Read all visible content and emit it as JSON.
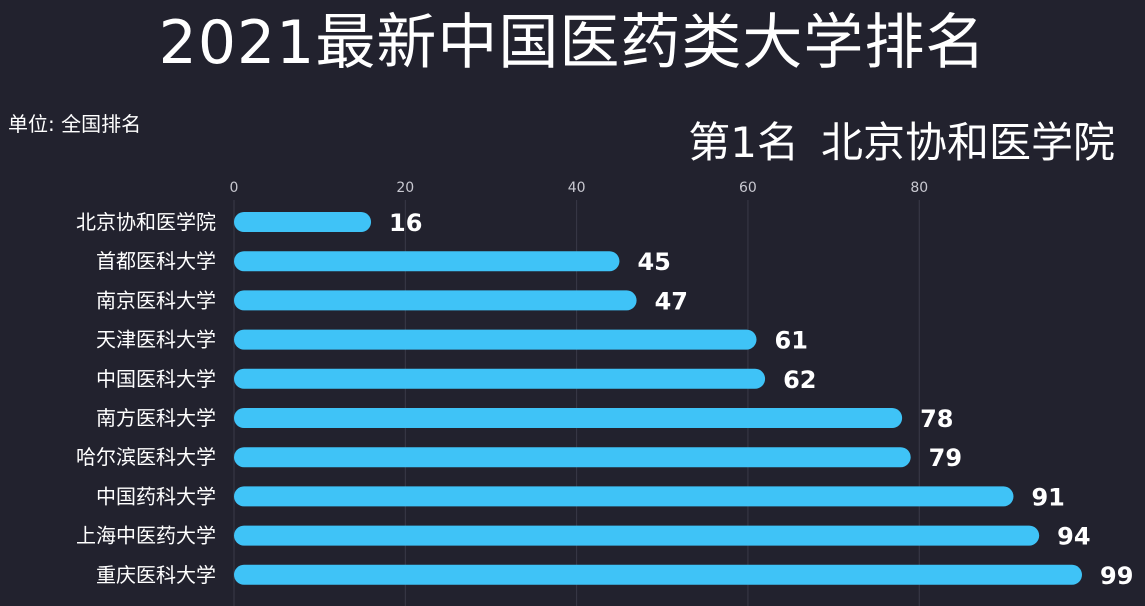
{
  "title": "2021最新中国医药类大学排名",
  "unit_label": "单位: 全国排名",
  "current_rank": {
    "prefix": "第1名",
    "name": "北京协和医学院"
  },
  "colors": {
    "background": "#22222e",
    "bar": "#3fc3f7",
    "text": "#ffffff",
    "grid": "#3a3a48",
    "tick": "#c8c8d0"
  },
  "chart_data": {
    "type": "bar",
    "orientation": "horizontal",
    "title": "2021最新中国医药类大学排名",
    "categories": [
      "北京协和医学院",
      "首都医科大学",
      "南京医科大学",
      "天津医科大学",
      "中国医科大学",
      "南方医科大学",
      "哈尔滨医科大学",
      "中国药科大学",
      "上海中医药大学",
      "重庆医科大学"
    ],
    "values": [
      16,
      45,
      47,
      61,
      62,
      78,
      79,
      91,
      94,
      99
    ],
    "xlim": [
      0,
      99
    ],
    "xticks": [
      0,
      20,
      40,
      60,
      80
    ],
    "grid": true,
    "data_labels": true
  }
}
